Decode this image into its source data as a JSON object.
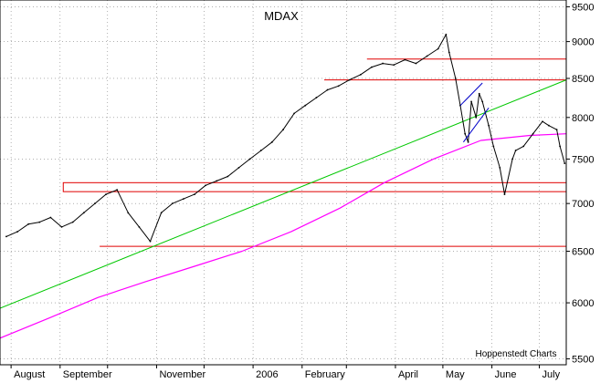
{
  "chart_data": {
    "type": "line",
    "title": "MDAX",
    "credit": "Hoppenstedt Charts",
    "scale": "log",
    "ylim": [
      5450,
      9600
    ],
    "y_ticks": [
      5500,
      6000,
      6500,
      7000,
      7500,
      8000,
      8500,
      9000,
      9500
    ],
    "x_labels": [
      "August",
      "September",
      "November",
      "2006",
      "February",
      "April",
      "May",
      "June",
      "July"
    ],
    "grid": true,
    "colors": {
      "price": "#000000",
      "moving_average": "#ff00ff",
      "trendline": "#00c800",
      "support_resistance": "#e00000",
      "channel": "#0000c8",
      "grid": "#808080"
    },
    "series": [
      {
        "role": "price",
        "x": [
          "2005-07-29",
          "2005-08-05",
          "2005-08-12",
          "2005-08-19",
          "2005-08-26",
          "2005-09-02",
          "2005-09-09",
          "2005-09-16",
          "2005-09-23",
          "2005-09-30",
          "2005-10-07",
          "2005-10-14",
          "2005-10-21",
          "2005-10-28",
          "2005-11-04",
          "2005-11-11",
          "2005-11-18",
          "2005-11-25",
          "2005-12-02",
          "2005-12-09",
          "2005-12-16",
          "2005-12-23",
          "2005-12-30",
          "2006-01-06",
          "2006-01-13",
          "2006-01-20",
          "2006-01-27",
          "2006-02-03",
          "2006-02-10",
          "2006-02-17",
          "2006-02-24",
          "2006-03-03",
          "2006-03-10",
          "2006-03-17",
          "2006-03-24",
          "2006-03-31",
          "2006-04-07",
          "2006-04-14",
          "2006-04-21",
          "2006-04-28",
          "2006-05-03",
          "2006-05-05",
          "2006-05-09",
          "2006-05-12",
          "2006-05-15",
          "2006-05-17",
          "2006-05-19",
          "2006-05-22",
          "2006-05-24",
          "2006-05-26",
          "2006-05-30",
          "2006-06-02",
          "2006-06-06",
          "2006-06-09",
          "2006-06-14",
          "2006-06-16",
          "2006-06-21",
          "2006-06-27",
          "2006-07-03",
          "2006-07-07",
          "2006-07-12",
          "2006-07-14",
          "2006-07-17"
        ],
        "values": [
          6650,
          6700,
          6780,
          6800,
          6850,
          6750,
          6800,
          6900,
          7000,
          7100,
          7150,
          6900,
          6750,
          6600,
          6900,
          7000,
          7050,
          7100,
          7200,
          7250,
          7300,
          7400,
          7500,
          7600,
          7700,
          7850,
          8050,
          8150,
          8250,
          8350,
          8400,
          8480,
          8550,
          8650,
          8700,
          8680,
          8750,
          8700,
          8800,
          8900,
          9100,
          8850,
          8500,
          8150,
          7800,
          7700,
          8200,
          8000,
          8300,
          8200,
          7900,
          7650,
          7400,
          7100,
          7500,
          7600,
          7650,
          7800,
          7950,
          7900,
          7850,
          7650,
          7450
        ]
      },
      {
        "role": "moving_average",
        "x": [
          "2005-07-25",
          "2005-08-25",
          "2005-09-25",
          "2005-10-25",
          "2005-11-25",
          "2005-12-25",
          "2006-01-25",
          "2006-02-25",
          "2006-03-25",
          "2006-04-25",
          "2006-05-25",
          "2006-06-25",
          "2006-07-18"
        ],
        "values": [
          5680,
          5860,
          6050,
          6200,
          6350,
          6500,
          6700,
          6950,
          7230,
          7500,
          7720,
          7780,
          7800
        ]
      },
      {
        "role": "trendline",
        "x": [
          "2005-07-25",
          "2006-07-18"
        ],
        "values": [
          5950,
          8480
        ]
      },
      {
        "role": "channel",
        "x": [
          "2006-05-14",
          "2006-05-30"
        ],
        "values": [
          7700,
          8120
        ]
      },
      {
        "role": "channel",
        "x": [
          "2006-05-12",
          "2006-05-26"
        ],
        "values": [
          8150,
          8440
        ]
      }
    ],
    "horizontal_lines": [
      {
        "role": "resistance",
        "value": 8760,
        "x_from": "2006-03-14",
        "x_to": "2006-07-18"
      },
      {
        "role": "resistance",
        "value": 8480,
        "x_from": "2006-02-15",
        "x_to": "2006-07-18"
      },
      {
        "role": "support",
        "value": 6550,
        "x_from": "2005-09-26",
        "x_to": "2006-07-18"
      }
    ],
    "zones": [
      {
        "role": "support_band",
        "y_from": 7130,
        "y_to": 7230,
        "x_from": "2005-09-03",
        "x_to": "2006-07-18"
      }
    ]
  }
}
